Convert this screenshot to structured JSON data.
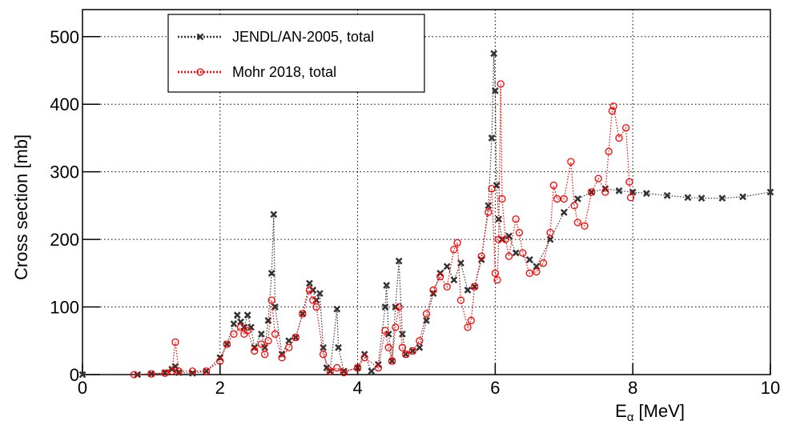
{
  "chart_data": {
    "type": "scatter-line",
    "x_label": {
      "text": "E",
      "subscript": "α",
      "unit": "[MeV]"
    },
    "y_label": "Cross section [mb]",
    "xlim": [
      0,
      10
    ],
    "xticks": [
      0,
      2,
      4,
      6,
      8,
      10
    ],
    "ylim": [
      0,
      540
    ],
    "yticks": [
      0,
      100,
      200,
      300,
      400,
      500
    ],
    "grid": true,
    "legend": "top-left",
    "series": [
      {
        "name": "JENDL/AN-2005, total",
        "color": "#333333",
        "marker": "x",
        "x": [
          0,
          0.8,
          1.0,
          1.2,
          1.3,
          1.35,
          1.4,
          1.6,
          1.8,
          2.0,
          2.1,
          2.2,
          2.25,
          2.3,
          2.35,
          2.4,
          2.45,
          2.5,
          2.6,
          2.65,
          2.7,
          2.75,
          2.78,
          2.8,
          2.9,
          3.0,
          3.1,
          3.2,
          3.3,
          3.35,
          3.4,
          3.45,
          3.5,
          3.55,
          3.6,
          3.7,
          3.72,
          3.8,
          4.0,
          4.1,
          4.2,
          4.3,
          4.4,
          4.42,
          4.45,
          4.5,
          4.55,
          4.6,
          4.65,
          4.7,
          4.8,
          4.9,
          5.0,
          5.1,
          5.2,
          5.3,
          5.4,
          5.5,
          5.6,
          5.7,
          5.8,
          5.9,
          5.95,
          5.98,
          6.0,
          6.02,
          6.05,
          6.1,
          6.2,
          6.3,
          6.5,
          6.6,
          6.8,
          7.0,
          7.2,
          7.4,
          7.6,
          7.8,
          8.0,
          8.2,
          8.5,
          8.8,
          9.0,
          9.3,
          9.6,
          10.0
        ],
        "values": [
          0,
          0,
          1,
          3,
          8,
          12,
          3,
          2,
          5,
          25,
          45,
          75,
          88,
          78,
          70,
          88,
          70,
          40,
          60,
          40,
          80,
          150,
          237,
          100,
          30,
          50,
          55,
          90,
          135,
          125,
          110,
          120,
          40,
          10,
          5,
          97,
          40,
          5,
          10,
          30,
          5,
          15,
          100,
          132,
          60,
          20,
          100,
          168,
          60,
          30,
          35,
          40,
          80,
          120,
          150,
          160,
          140,
          165,
          125,
          130,
          170,
          250,
          350,
          475,
          420,
          280,
          230,
          200,
          205,
          180,
          170,
          160,
          200,
          240,
          260,
          270,
          275,
          272,
          270,
          268,
          265,
          262,
          261,
          261,
          263,
          270
        ]
      },
      {
        "name": "Mohr 2018, total",
        "color": "#ff0000",
        "marker": "circle",
        "x": [
          0.75,
          1.0,
          1.2,
          1.3,
          1.35,
          1.4,
          1.6,
          1.8,
          2.0,
          2.1,
          2.2,
          2.3,
          2.35,
          2.4,
          2.5,
          2.6,
          2.65,
          2.7,
          2.75,
          2.8,
          2.9,
          3.0,
          3.1,
          3.2,
          3.3,
          3.35,
          3.4,
          3.5,
          3.6,
          3.7,
          3.8,
          4.0,
          4.1,
          4.3,
          4.4,
          4.45,
          4.5,
          4.55,
          4.6,
          4.65,
          4.7,
          4.8,
          4.9,
          5.0,
          5.1,
          5.2,
          5.3,
          5.4,
          5.45,
          5.5,
          5.6,
          5.65,
          5.7,
          5.8,
          5.9,
          5.95,
          6.0,
          6.03,
          6.05,
          6.08,
          6.1,
          6.15,
          6.2,
          6.3,
          6.35,
          6.4,
          6.5,
          6.6,
          6.7,
          6.8,
          6.85,
          6.9,
          7.0,
          7.1,
          7.15,
          7.2,
          7.3,
          7.4,
          7.5,
          7.6,
          7.65,
          7.7,
          7.72,
          7.8,
          7.9,
          7.95,
          7.97
        ],
        "values": [
          0,
          1,
          2,
          5,
          48,
          5,
          5,
          5,
          20,
          45,
          60,
          70,
          60,
          65,
          35,
          45,
          30,
          50,
          110,
          60,
          25,
          40,
          55,
          90,
          125,
          110,
          100,
          30,
          5,
          10,
          3,
          10,
          25,
          10,
          65,
          40,
          20,
          70,
          100,
          40,
          30,
          35,
          50,
          90,
          125,
          145,
          130,
          185,
          195,
          110,
          70,
          80,
          130,
          175,
          240,
          275,
          150,
          140,
          200,
          430,
          260,
          200,
          175,
          230,
          210,
          180,
          150,
          152,
          165,
          210,
          280,
          260,
          260,
          315,
          250,
          225,
          220,
          270,
          290,
          270,
          330,
          390,
          397,
          350,
          365,
          285,
          262
        ]
      }
    ]
  }
}
